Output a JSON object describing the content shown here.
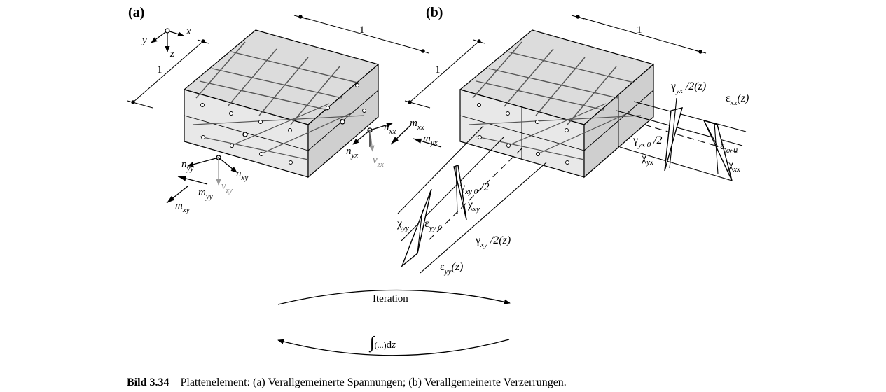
{
  "panel_a": {
    "label": "(a)",
    "dim_x": "1",
    "dim_y": "1",
    "axis_x": "x",
    "axis_y": "y",
    "axis_z": "z",
    "n_xx": "n",
    "n_xx_sub": "xx",
    "m_xx": "m",
    "m_xx_sub": "xx",
    "m_yx": "m",
    "m_yx_sub": "yx",
    "n_yx": "n",
    "n_yx_sub": "yx",
    "v_zx": "v",
    "v_zx_sub": "zx",
    "n_yy": "n",
    "n_yy_sub": "yy",
    "n_xy": "n",
    "n_xy_sub": "xy",
    "v_zy": "v",
    "v_zy_sub": "zy",
    "m_yy": "m",
    "m_yy_sub": "yy",
    "m_xy": "m",
    "m_xy_sub": "xy"
  },
  "panel_b": {
    "label": "(b)",
    "dim_x": "1",
    "dim_y": "1",
    "gamma_yx_half": "γ",
    "gamma_yx_half_sub": "yx",
    "gamma_yx_half_tail": " /2(z)",
    "eps_xx": "ε",
    "eps_xx_sub": "xx",
    "eps_xx_tail": "(z)",
    "gamma_yx0": "γ",
    "gamma_yx0_sub": "yx 0",
    "gamma_yx0_tail": " /2",
    "chi_yx": "χ",
    "chi_yx_sub": "yx",
    "eps_xx0": "ε",
    "eps_xx0_sub": "xx 0",
    "chi_xx": "χ",
    "chi_xx_sub": "xx",
    "gamma_xy0": "γ",
    "gamma_xy0_sub": "xy 0",
    "gamma_xy0_tail": " /2",
    "chi_xy": "χ",
    "chi_xy_sub": "xy",
    "chi_yy": "χ",
    "chi_yy_sub": "yy",
    "eps_yy0": "ε",
    "eps_yy0_sub": "yy 0",
    "gamma_xy_half": "γ",
    "gamma_xy_half_sub": "xy",
    "gamma_xy_half_tail": " /2(z)",
    "eps_yy": "ε",
    "eps_yy_sub": "yy",
    "eps_yy_tail": "(z)"
  },
  "iteration": {
    "label": "Iteration"
  },
  "integral": {
    "sign": "∫",
    "body": "(...)",
    "dz": "d",
    "z": "z"
  },
  "caption": {
    "number": "Bild 3.34",
    "text": "Plattenelement: (a) Verallgemeinerte Spannungen; (b) Verallgemeinerte Verzerrungen."
  }
}
